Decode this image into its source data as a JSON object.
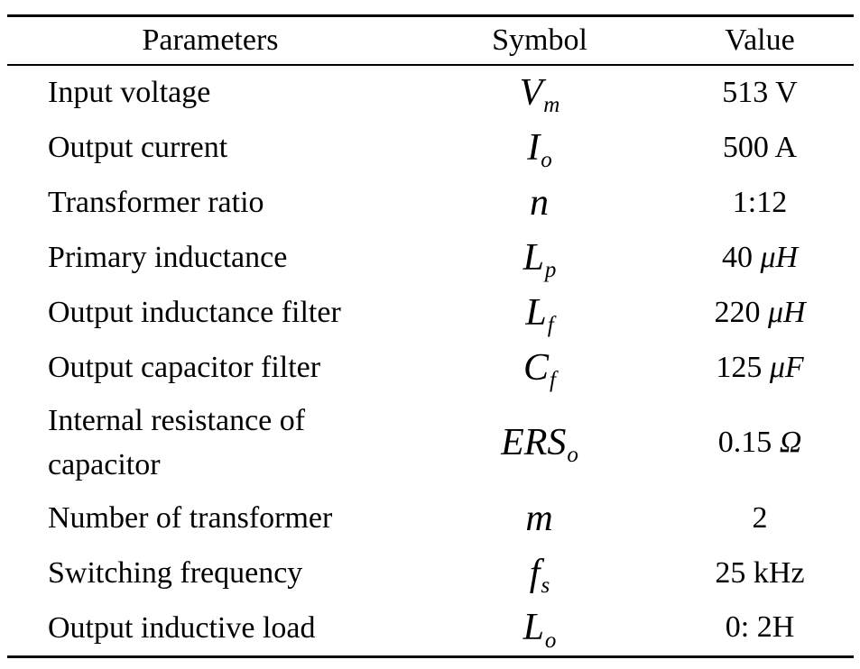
{
  "colors": {
    "background": "#ffffff",
    "text": "#000000",
    "rule": "#000000"
  },
  "table": {
    "headers": {
      "param": "Parameters",
      "symbol": "Symbol",
      "value": "Value"
    },
    "rows": [
      {
        "param": "Input voltage",
        "symbol_base": "V",
        "symbol_sub": "m",
        "value_text": "513 V",
        "value_italic": ""
      },
      {
        "param": "Output current",
        "symbol_base": "I",
        "symbol_sub": "o",
        "value_text": "500 A",
        "value_italic": ""
      },
      {
        "param": "Transformer ratio",
        "symbol_base": "n",
        "symbol_sub": "",
        "value_text": "1:12",
        "value_italic": ""
      },
      {
        "param": "Primary inductance",
        "symbol_base": "L",
        "symbol_sub": "p",
        "value_text": "40 ",
        "value_italic": "μH"
      },
      {
        "param": "Output inductance filter",
        "symbol_base": "L",
        "symbol_sub": "f",
        "value_text": "220 ",
        "value_italic": "μH"
      },
      {
        "param": "Output capacitor filter",
        "symbol_base": "C",
        "symbol_sub": "f",
        "value_text": "125 ",
        "value_italic": "μF"
      },
      {
        "param": "Internal resistance of capacitor",
        "symbol_base": "ERS",
        "symbol_sub": "o",
        "value_text": "0.15 ",
        "value_italic": "Ω"
      },
      {
        "param": "Number of transformer",
        "symbol_base": "m",
        "symbol_sub": "",
        "value_text": "2",
        "value_italic": ""
      },
      {
        "param": "Switching frequency",
        "symbol_base": "f",
        "symbol_sub": "s",
        "value_text": "25 kHz",
        "value_italic": ""
      },
      {
        "param": "Output inductive load",
        "symbol_base": "L",
        "symbol_sub": "o",
        "value_text": "0: 2H",
        "value_italic": ""
      }
    ]
  }
}
